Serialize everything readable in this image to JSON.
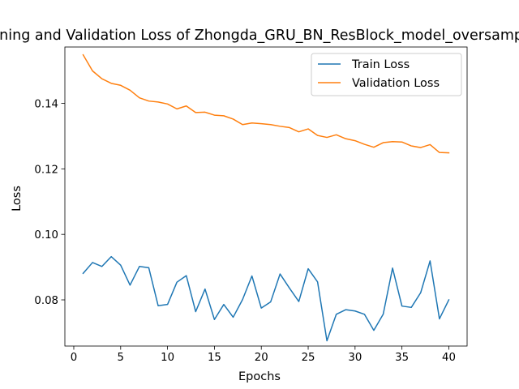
{
  "chart_data": {
    "type": "line",
    "title": "Training and Validation Loss of Zhongda_GRU_BN_ResBlock_model_oversampled",
    "xlabel": "Epochs",
    "ylabel": "Loss",
    "xlim": [
      -0.95,
      41.95
    ],
    "ylim": [
      0.0659,
      0.1572
    ],
    "xticks": [
      0,
      5,
      10,
      15,
      20,
      25,
      30,
      35,
      40
    ],
    "yticks": [
      0.08,
      0.1,
      0.12,
      0.14
    ],
    "ytick_labels": [
      "0.08",
      "0.10",
      "0.12",
      "0.14"
    ],
    "grid": false,
    "legend_position": "upper right",
    "x": [
      1,
      2,
      3,
      4,
      5,
      6,
      7,
      8,
      9,
      10,
      11,
      12,
      13,
      14,
      15,
      16,
      17,
      18,
      19,
      20,
      21,
      22,
      23,
      24,
      25,
      26,
      27,
      28,
      29,
      30,
      31,
      32,
      33,
      34,
      35,
      36,
      37,
      38,
      39,
      40
    ],
    "series": [
      {
        "name": "Train Loss",
        "color": "#1f77b4",
        "values": [
          0.0881,
          0.0914,
          0.0902,
          0.0932,
          0.0906,
          0.0845,
          0.0902,
          0.0898,
          0.0782,
          0.0786,
          0.0854,
          0.0874,
          0.0764,
          0.0833,
          0.074,
          0.0786,
          0.0747,
          0.0801,
          0.0873,
          0.0775,
          0.0794,
          0.0879,
          0.0836,
          0.0795,
          0.0895,
          0.0855,
          0.0675,
          0.0756,
          0.077,
          0.0766,
          0.0756,
          0.0707,
          0.0756,
          0.0897,
          0.0781,
          0.0777,
          0.0822,
          0.0919,
          0.0742,
          0.08
        ]
      },
      {
        "name": "Validation Loss",
        "color": "#ff7f0e",
        "values": [
          0.1548,
          0.1499,
          0.1475,
          0.1461,
          0.1455,
          0.144,
          0.1417,
          0.1407,
          0.1404,
          0.1398,
          0.1383,
          0.1392,
          0.1372,
          0.1373,
          0.1364,
          0.1362,
          0.1352,
          0.1335,
          0.134,
          0.1338,
          0.1335,
          0.133,
          0.1326,
          0.1313,
          0.1322,
          0.1302,
          0.1296,
          0.1304,
          0.1292,
          0.1286,
          0.1275,
          0.1266,
          0.128,
          0.1283,
          0.1282,
          0.127,
          0.1265,
          0.1274,
          0.125,
          0.1249
        ]
      }
    ]
  }
}
